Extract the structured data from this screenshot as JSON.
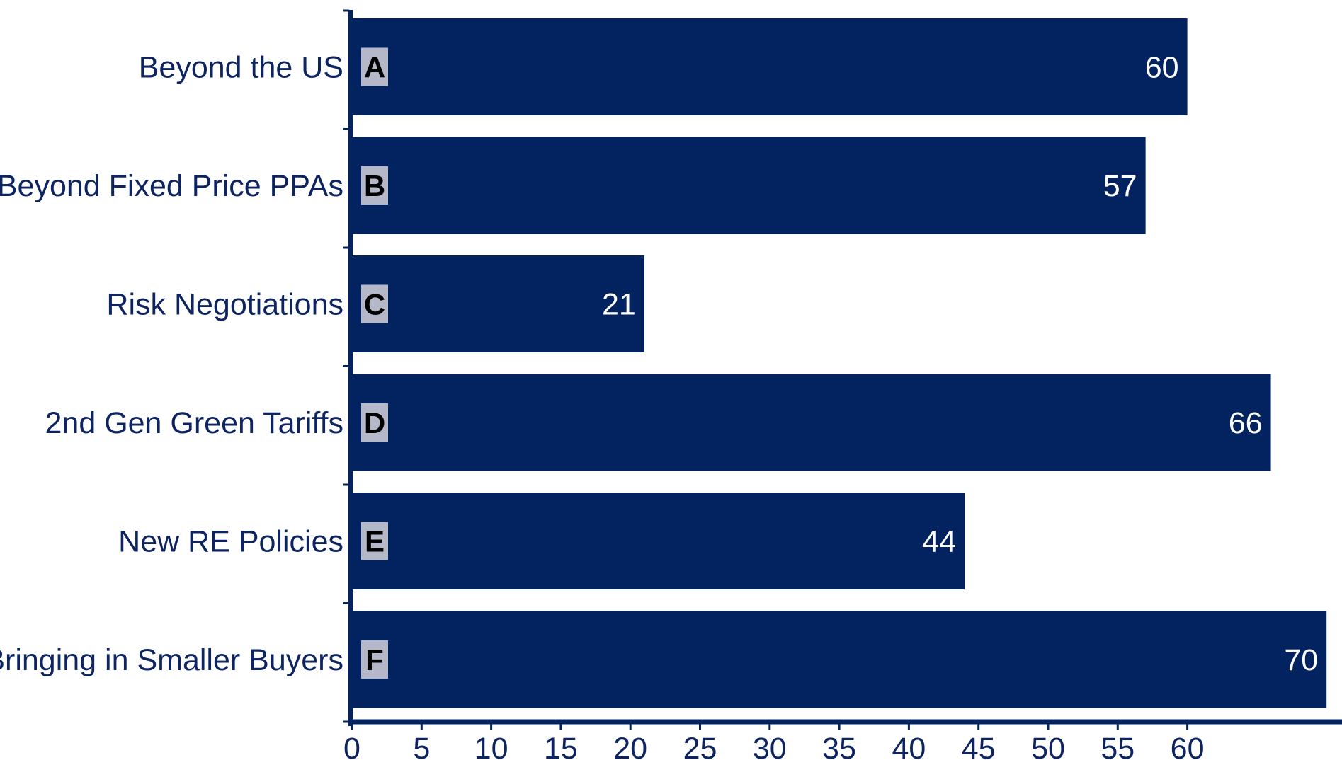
{
  "chart_data": {
    "type": "bar",
    "orientation": "horizontal",
    "categories": [
      "Beyond the US",
      "Beyond Fixed Price PPAs",
      "Risk Negotiations",
      "2nd Gen Green Tariffs",
      "New RE Policies",
      "Bringing in Smaller Buyers"
    ],
    "badges": [
      "A",
      "B",
      "C",
      "D",
      "E",
      "F"
    ],
    "values": [
      60,
      57,
      21,
      66,
      44,
      70
    ],
    "x_ticks": [
      "0",
      "5",
      "10",
      "15",
      "20",
      "25",
      "30",
      "35",
      "40",
      "45",
      "50",
      "55",
      "60"
    ],
    "xlim": [
      0,
      70
    ],
    "title": "",
    "xlabel": "",
    "ylabel": "",
    "grid": false,
    "legend": "none",
    "colors": {
      "bar": "#032360",
      "axis": "#032360",
      "label_text": "#0d2460",
      "value_text": "#ffffff",
      "badge_fill": "#b5b8c8",
      "badge_text": "#000000"
    }
  }
}
